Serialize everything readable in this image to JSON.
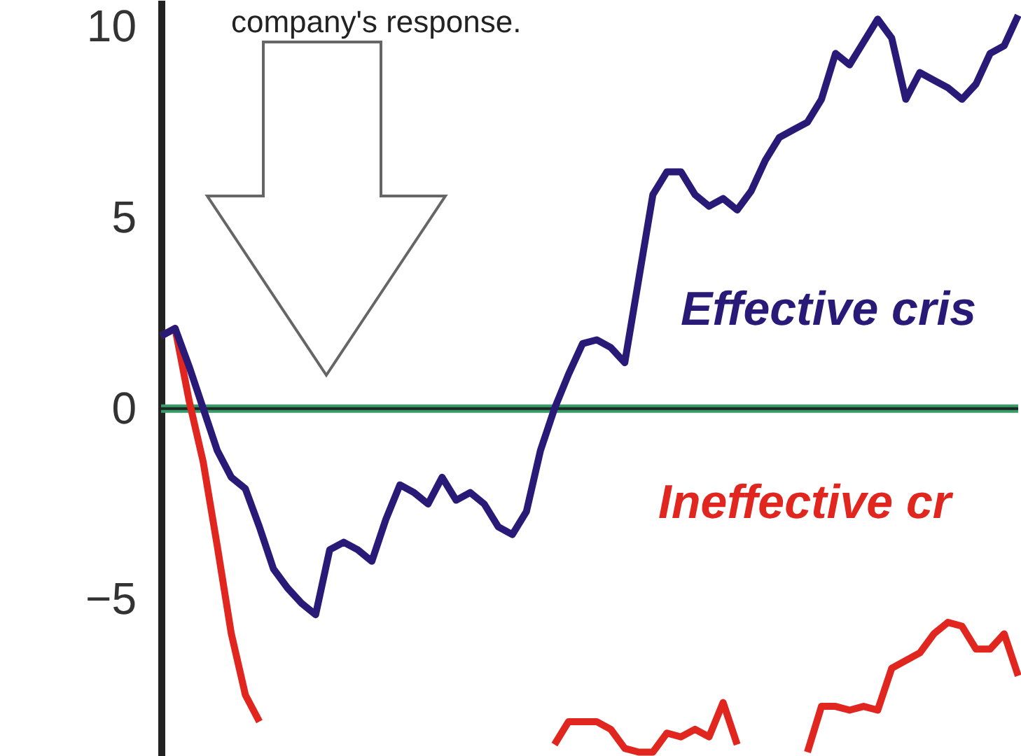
{
  "chart_data": {
    "type": "line",
    "categories": [
      null,
      null,
      null,
      null,
      null,
      null,
      null,
      null,
      null,
      null,
      null,
      null,
      null,
      null,
      null,
      null,
      null,
      null,
      null,
      null,
      null,
      null,
      null,
      null,
      null,
      null,
      null,
      null,
      null,
      null,
      null,
      null,
      null,
      null,
      null,
      null,
      null,
      null,
      null,
      null,
      null,
      null,
      null,
      null,
      null,
      null,
      null,
      null,
      null,
      null,
      null,
      null,
      null,
      null,
      null,
      null,
      null,
      null,
      null,
      null,
      null,
      null
    ],
    "series": [
      {
        "name": "Ineffective cr",
        "color": "#e0261e",
        "values": [
          1.9,
          2.1,
          0.2,
          -1.4,
          -3.6,
          -5.9,
          -7.5,
          -8.2,
          null,
          null,
          null,
          null,
          null,
          null,
          null,
          null,
          null,
          null,
          null,
          null,
          null,
          null,
          null,
          null,
          null,
          null,
          null,
          null,
          -8.8,
          -8.2,
          -8.2,
          -8.2,
          -8.4,
          -8.9,
          -9.0,
          -9.0,
          -8.5,
          -8.6,
          -8.4,
          -8.6,
          -7.7,
          -8.8,
          null,
          null,
          null,
          null,
          -9.0,
          -7.8,
          -7.8,
          -7.9,
          -7.8,
          -7.9,
          -6.8,
          -6.6,
          -6.4,
          -5.9,
          -5.6,
          -5.7,
          -6.3,
          -6.3,
          -5.9,
          -7.0
        ]
      },
      {
        "name": "Effective cris",
        "color": "#2a1a78",
        "values": [
          1.9,
          2.1,
          1.1,
          0.0,
          -1.1,
          -1.8,
          -2.1,
          -3.1,
          -4.2,
          -4.7,
          -5.1,
          -5.4,
          -3.7,
          -3.5,
          -3.7,
          -4.0,
          -2.9,
          -2.0,
          -2.2,
          -2.5,
          -1.8,
          -2.4,
          -2.2,
          -2.5,
          -3.1,
          -3.3,
          -2.7,
          -1.1,
          0.0,
          0.9,
          1.7,
          1.8,
          1.6,
          1.2,
          3.4,
          5.6,
          6.2,
          6.2,
          5.6,
          5.3,
          5.5,
          5.2,
          5.7,
          6.5,
          7.1,
          7.3,
          7.5,
          8.1,
          9.3,
          9.0,
          9.6,
          10.2,
          9.7,
          8.1,
          8.8,
          8.6,
          8.4,
          8.1,
          8.5,
          9.3,
          9.5,
          10.3
        ]
      }
    ],
    "ylim": [
      -9.1,
      10.7
    ],
    "yticks": [
      -5,
      0,
      5,
      10
    ],
    "ref_lines": [
      {
        "axis": "y",
        "value": 0,
        "color": "#3a9a6a"
      }
    ],
    "annotations": [
      "company's response."
    ],
    "grid": false,
    "marker": "none",
    "line_style": "solid"
  }
}
